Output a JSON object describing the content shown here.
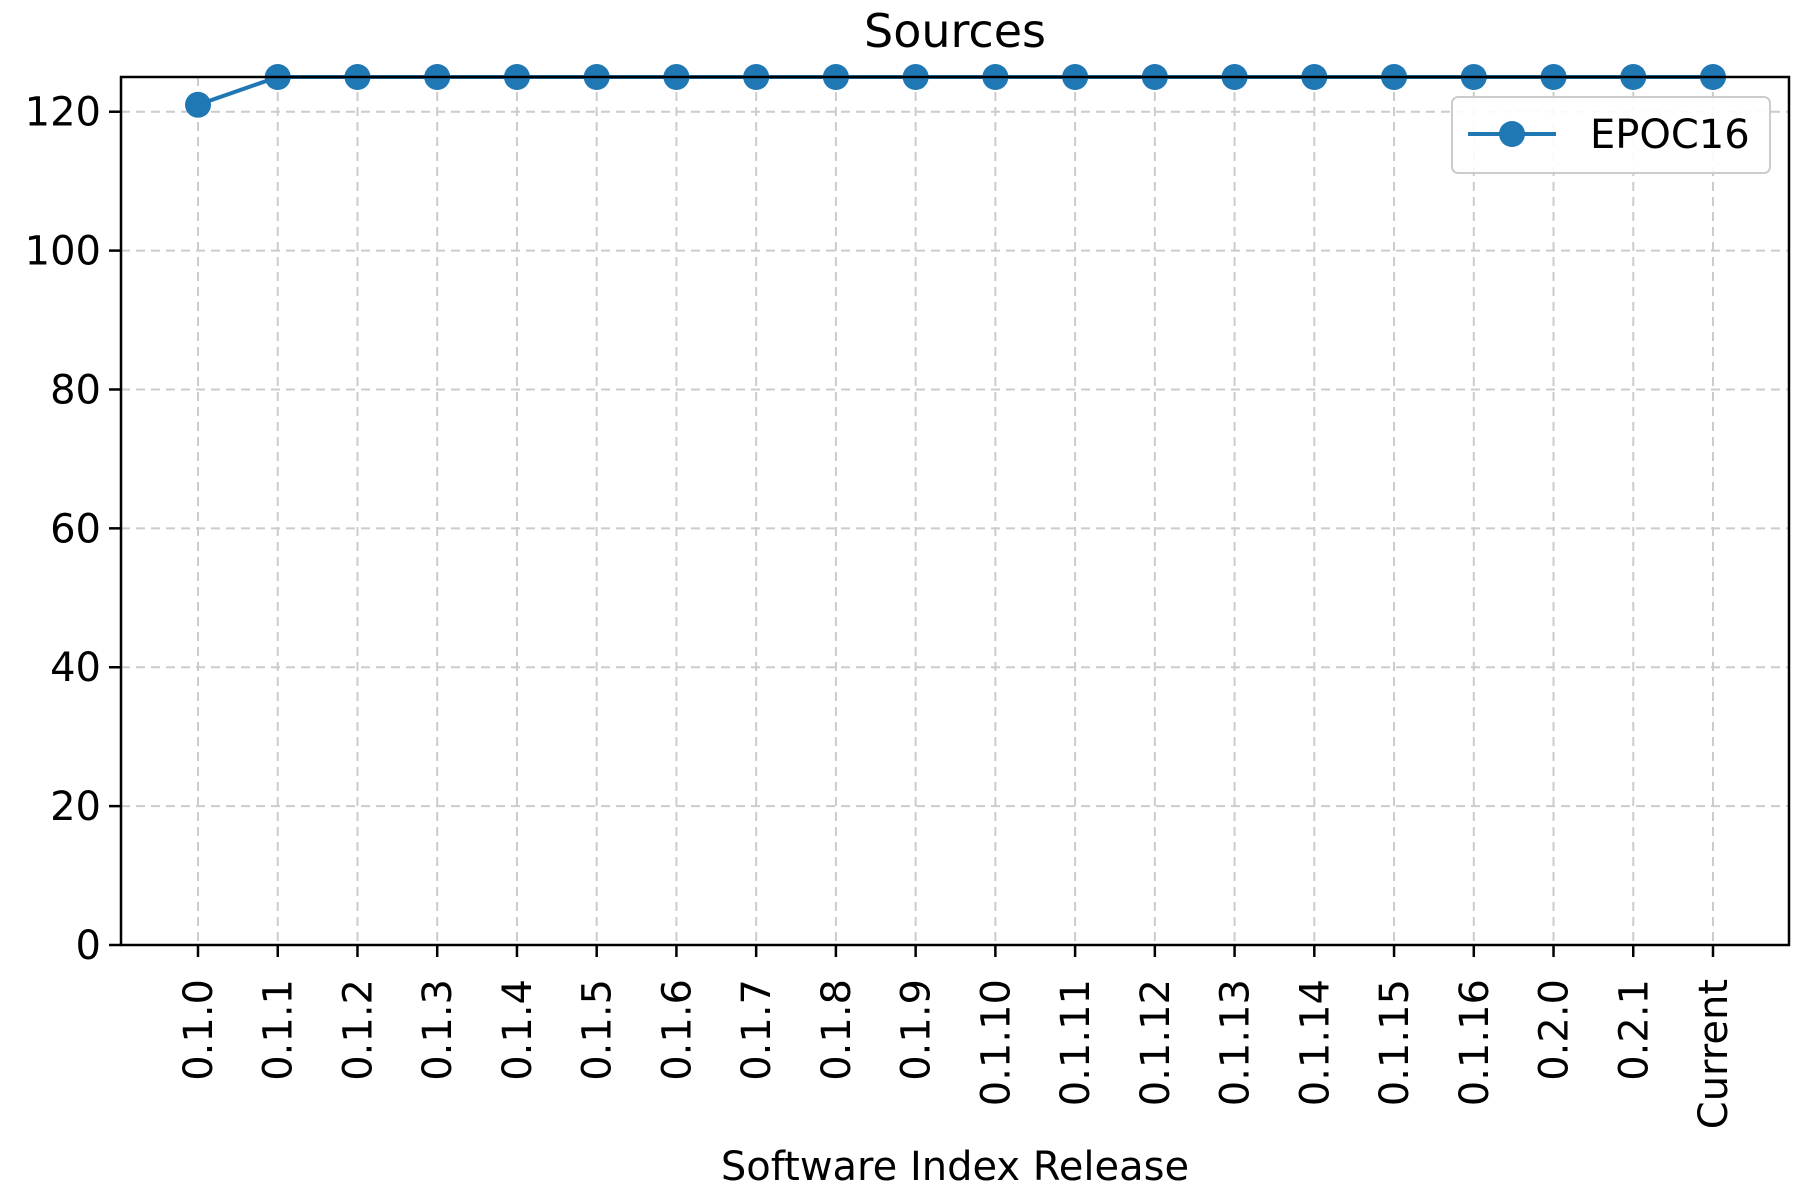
{
  "chart_data": {
    "type": "line",
    "title": "Sources",
    "xlabel": "Software Index Release",
    "ylabel": "",
    "categories": [
      "0.1.0",
      "0.1.1",
      "0.1.2",
      "0.1.3",
      "0.1.4",
      "0.1.5",
      "0.1.6",
      "0.1.7",
      "0.1.8",
      "0.1.9",
      "0.1.10",
      "0.1.11",
      "0.1.12",
      "0.1.13",
      "0.1.14",
      "0.1.15",
      "0.1.16",
      "0.2.0",
      "0.2.1",
      "Current"
    ],
    "series": [
      {
        "name": "EPOC16",
        "values": [
          121,
          125,
          125,
          125,
          125,
          125,
          125,
          125,
          125,
          125,
          125,
          125,
          125,
          125,
          125,
          125,
          125,
          125,
          125,
          125
        ],
        "color": "#1f77b4",
        "marker": "circle"
      }
    ],
    "ylim": [
      0,
      125
    ],
    "yticks": [
      0,
      20,
      40,
      60,
      80,
      100,
      120
    ],
    "grid": true,
    "legend_position": "top-right"
  }
}
